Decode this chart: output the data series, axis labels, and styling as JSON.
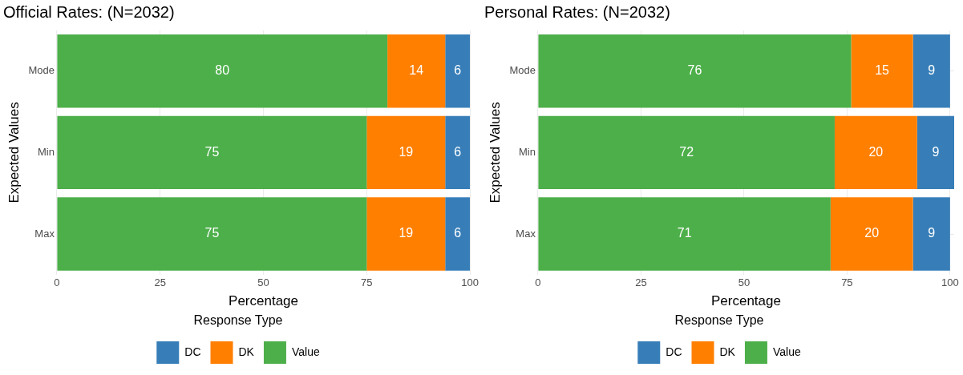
{
  "chart_data": [
    {
      "type": "bar",
      "title": "Official Rates: (N=2032)",
      "xlabel": "Percentage",
      "ylabel": "Expected Values",
      "legend_title": "Response Type",
      "orientation": "horizontal",
      "stacked": true,
      "categories": [
        "Mode",
        "Min",
        "Max"
      ],
      "series": [
        {
          "name": "Value",
          "color": "#4daf4a",
          "values": [
            80,
            75,
            75
          ]
        },
        {
          "name": "DK",
          "color": "#ff7f00",
          "values": [
            14,
            19,
            19
          ]
        },
        {
          "name": "DC",
          "color": "#377eb8",
          "values": [
            6,
            6,
            6
          ]
        }
      ],
      "xlim": [
        0,
        100
      ],
      "xticks": [
        0,
        25,
        50,
        75,
        100
      ],
      "grid": true,
      "legend": "bottom",
      "data_labels": true
    },
    {
      "type": "bar",
      "title": "Personal Rates: (N=2032)",
      "xlabel": "Percentage",
      "ylabel": "Expected Values",
      "legend_title": "Response Type",
      "orientation": "horizontal",
      "stacked": true,
      "categories": [
        "Mode",
        "Min",
        "Max"
      ],
      "series": [
        {
          "name": "Value",
          "color": "#4daf4a",
          "values": [
            76,
            72,
            71
          ]
        },
        {
          "name": "DK",
          "color": "#ff7f00",
          "values": [
            15,
            20,
            20
          ]
        },
        {
          "name": "DC",
          "color": "#377eb8",
          "values": [
            9,
            9,
            9
          ]
        }
      ],
      "xlim": [
        0,
        101
      ],
      "xticks": [
        0,
        25,
        50,
        75,
        100
      ],
      "grid": true,
      "legend": "bottom",
      "data_labels": true
    }
  ]
}
